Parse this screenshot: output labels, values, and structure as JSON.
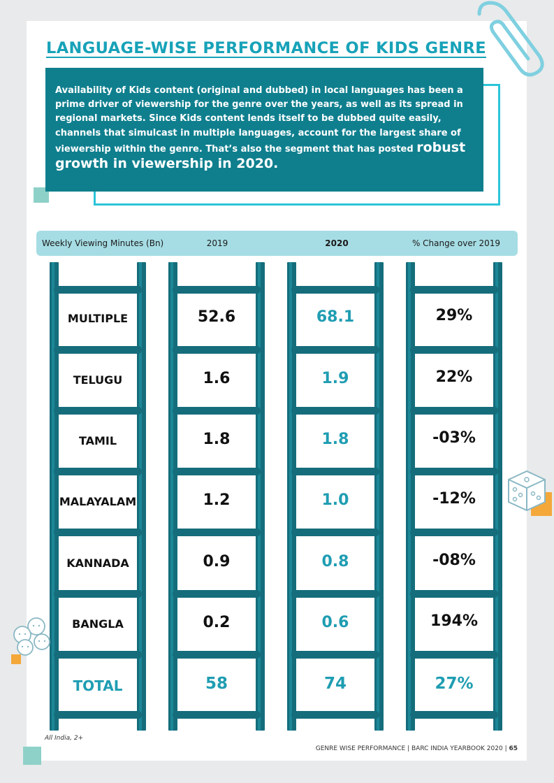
{
  "title": "LANGUAGE-WISE PERFORMANCE OF KIDS GENRE",
  "intro": {
    "text": "Availability of Kids content (original and dubbed) in local languages has been a prime driver of viewership for the genre over the years, as well as its spread in regional markets. Since Kids content lends itself to be dubbed quite easily, channels that simulcast in multiple languages, account for the largest share of viewership within the genre. That’s also the segment that has posted ",
    "emphasis": "robust growth in viewership in 2020."
  },
  "table": {
    "headers": [
      "Weekly Viewing Minutes (Bn)",
      "2019",
      "2020",
      "% Change over 2019"
    ],
    "rows": [
      {
        "language": "MULTIPLE",
        "y2019": "52.6",
        "y2020": "68.1",
        "change": "29%"
      },
      {
        "language": "TELUGU",
        "y2019": "1.6",
        "y2020": "1.9",
        "change": "22%"
      },
      {
        "language": "TAMIL",
        "y2019": "1.8",
        "y2020": "1.8",
        "change": "-03%"
      },
      {
        "language": "MALAYALAM",
        "y2019": "1.2",
        "y2020": "1.0",
        "change": "-12%"
      },
      {
        "language": "KANNADA",
        "y2019": "0.9",
        "y2020": "0.8",
        "change": "-08%"
      },
      {
        "language": "BANGLA",
        "y2019": "0.2",
        "y2020": "0.6",
        "change": "194%"
      }
    ],
    "total": {
      "language": "TOTAL",
      "y2019": "58",
      "y2020": "74",
      "change": "27%"
    }
  },
  "footnote": "All India, 2+",
  "footer": {
    "text": "GENRE WISE PERFORMANCE | BARC INDIA YEARBOOK 2020 | ",
    "page": "65"
  },
  "colors": {
    "teal": "#0f7f8e",
    "accent": "#1f9db2",
    "header_bar": "#a6dde4",
    "orange": "#f4a83a"
  }
}
